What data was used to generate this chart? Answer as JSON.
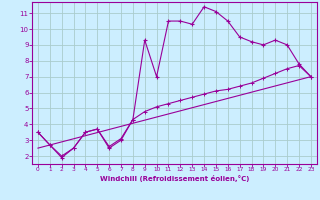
{
  "xlabel": "Windchill (Refroidissement éolien,°C)",
  "background_color": "#cceeff",
  "grid_color": "#aacccc",
  "line_color": "#990099",
  "xlim": [
    -0.5,
    23.5
  ],
  "ylim": [
    1.5,
    11.7
  ],
  "xticks": [
    0,
    1,
    2,
    3,
    4,
    5,
    6,
    7,
    8,
    9,
    10,
    11,
    12,
    13,
    14,
    15,
    16,
    17,
    18,
    19,
    20,
    21,
    22,
    23
  ],
  "yticks": [
    2,
    3,
    4,
    5,
    6,
    7,
    8,
    9,
    10,
    11
  ],
  "series1_x": [
    0,
    1,
    2,
    3,
    4,
    5,
    6,
    7,
    8,
    9,
    10,
    11,
    12,
    13,
    14,
    15,
    16,
    17,
    18,
    19,
    20,
    21,
    22,
    23
  ],
  "series1_y": [
    3.5,
    2.7,
    1.9,
    2.5,
    3.5,
    3.7,
    2.5,
    3.0,
    4.3,
    9.3,
    7.0,
    10.5,
    10.5,
    10.3,
    11.4,
    11.1,
    10.5,
    9.5,
    9.2,
    9.0,
    9.3,
    9.0,
    7.8,
    7.0
  ],
  "series2_x": [
    0,
    1,
    2,
    3,
    4,
    5,
    6,
    7,
    8,
    9,
    10,
    11,
    12,
    13,
    14,
    15,
    16,
    17,
    18,
    19,
    20,
    21,
    22,
    23
  ],
  "series2_y": [
    3.5,
    2.7,
    2.0,
    2.5,
    3.5,
    3.7,
    2.6,
    3.1,
    4.3,
    4.8,
    5.1,
    5.3,
    5.5,
    5.7,
    5.9,
    6.1,
    6.2,
    6.4,
    6.6,
    6.9,
    7.2,
    7.5,
    7.7,
    7.0
  ],
  "series3_x": [
    0,
    23
  ],
  "series3_y": [
    2.5,
    7.0
  ]
}
